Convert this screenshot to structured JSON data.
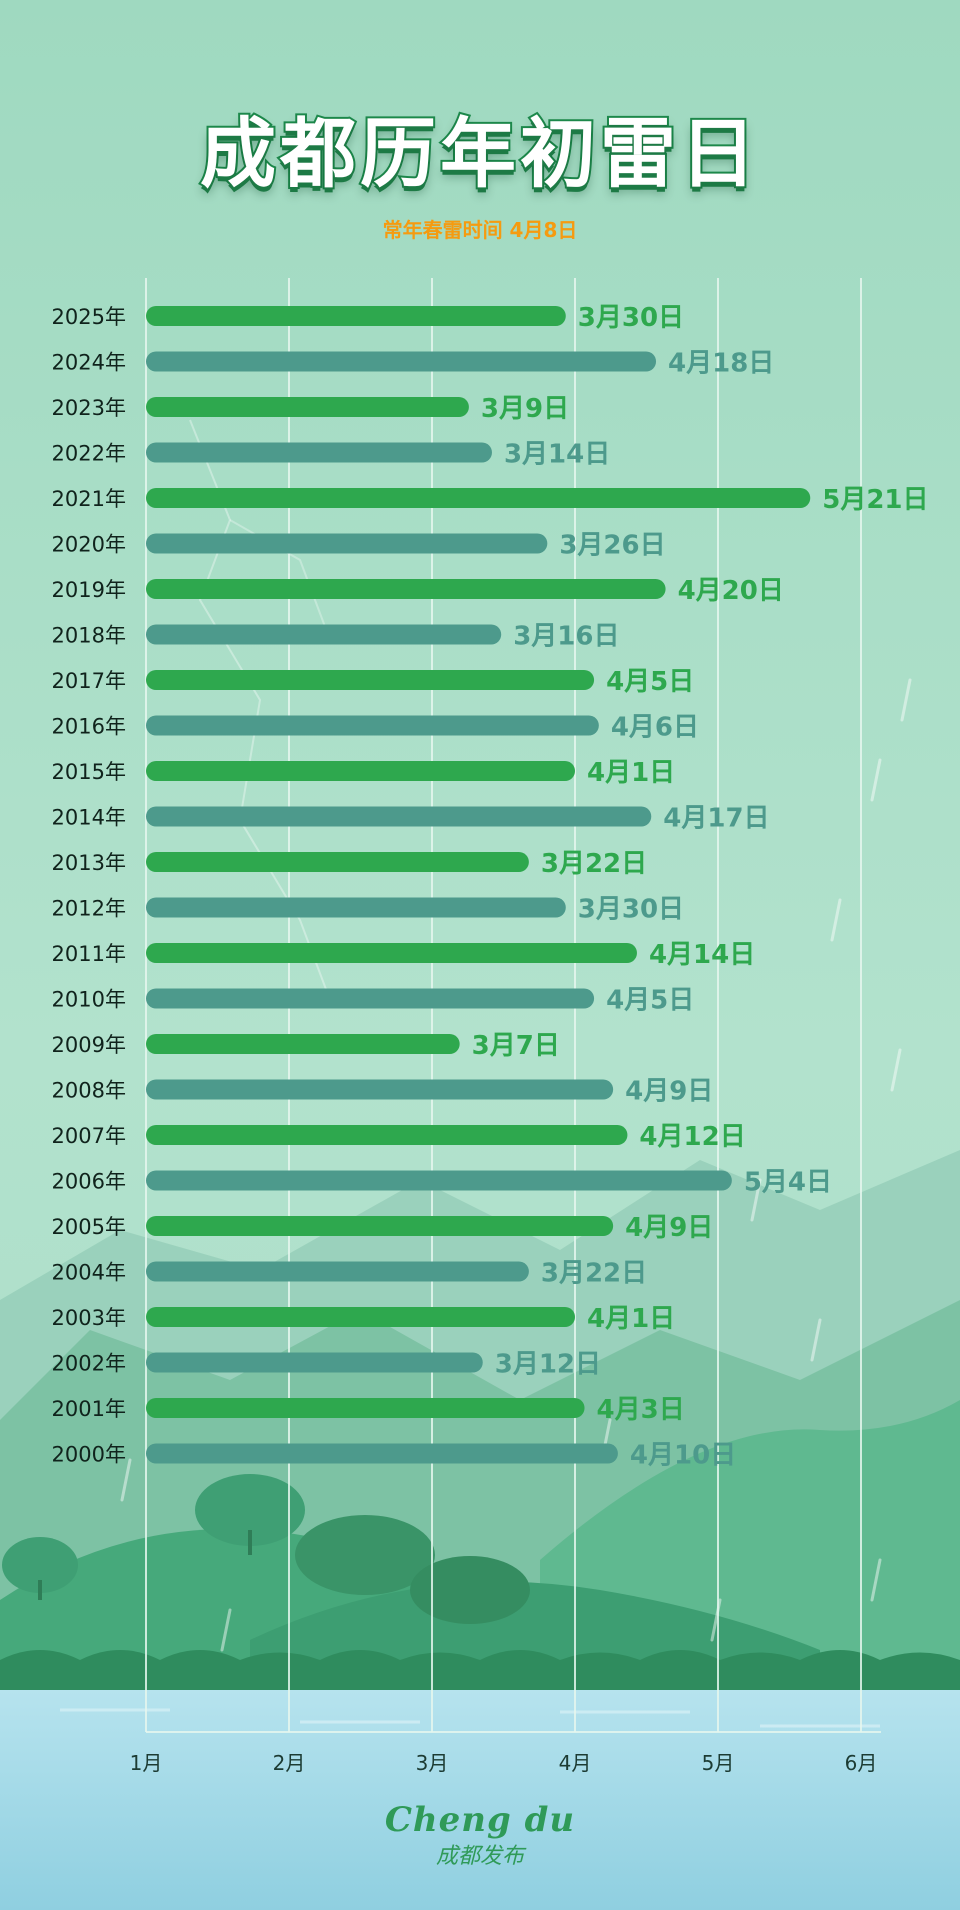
{
  "title": "成都历年初雷日",
  "subtitle": "常年春雷时间 4月8日",
  "brand": {
    "en": "Cheng du",
    "cn": "成都发布"
  },
  "colors": {
    "green_bar": "#2ea84e",
    "teal_bar": "#4d9a8c",
    "title_stroke": "#1d8a4c",
    "subtitle": "#f59b10"
  },
  "chart_data": {
    "type": "bar",
    "orientation": "horizontal",
    "title": "成都历年初雷日",
    "subtitle": "常年春雷时间 4月8日",
    "x_ticks": [
      "1月",
      "2月",
      "3月",
      "4月",
      "5月",
      "6月"
    ],
    "x_unit": "month",
    "xlim": [
      1,
      6
    ],
    "grid": true,
    "categories": [
      "2025年",
      "2024年",
      "2023年",
      "2022年",
      "2021年",
      "2020年",
      "2019年",
      "2018年",
      "2017年",
      "2016年",
      "2015年",
      "2014年",
      "2013年",
      "2012年",
      "2011年",
      "2010年",
      "2009年",
      "2008年",
      "2007年",
      "2006年",
      "2005年",
      "2004年",
      "2003年",
      "2002年",
      "2001年",
      "2000年"
    ],
    "dates": [
      [
        3,
        30
      ],
      [
        4,
        18
      ],
      [
        3,
        9
      ],
      [
        3,
        14
      ],
      [
        5,
        21
      ],
      [
        3,
        26
      ],
      [
        4,
        20
      ],
      [
        3,
        16
      ],
      [
        4,
        5
      ],
      [
        4,
        6
      ],
      [
        4,
        1
      ],
      [
        4,
        17
      ],
      [
        3,
        22
      ],
      [
        3,
        30
      ],
      [
        4,
        14
      ],
      [
        4,
        5
      ],
      [
        3,
        7
      ],
      [
        4,
        9
      ],
      [
        4,
        12
      ],
      [
        5,
        4
      ],
      [
        4,
        9
      ],
      [
        3,
        22
      ],
      [
        4,
        1
      ],
      [
        3,
        12
      ],
      [
        4,
        3
      ],
      [
        4,
        10
      ]
    ],
    "labels": [
      "3月30日",
      "4月18日",
      "3月9日",
      "3月14日",
      "5月21日",
      "3月26日",
      "4月20日",
      "3月16日",
      "4月5日",
      "4月6日",
      "4月1日",
      "4月17日",
      "3月22日",
      "3月30日",
      "4月14日",
      "4月5日",
      "3月7日",
      "4月9日",
      "4月12日",
      "5月4日",
      "4月9日",
      "3月22日",
      "4月1日",
      "3月12日",
      "4月3日",
      "4月10日"
    ]
  }
}
